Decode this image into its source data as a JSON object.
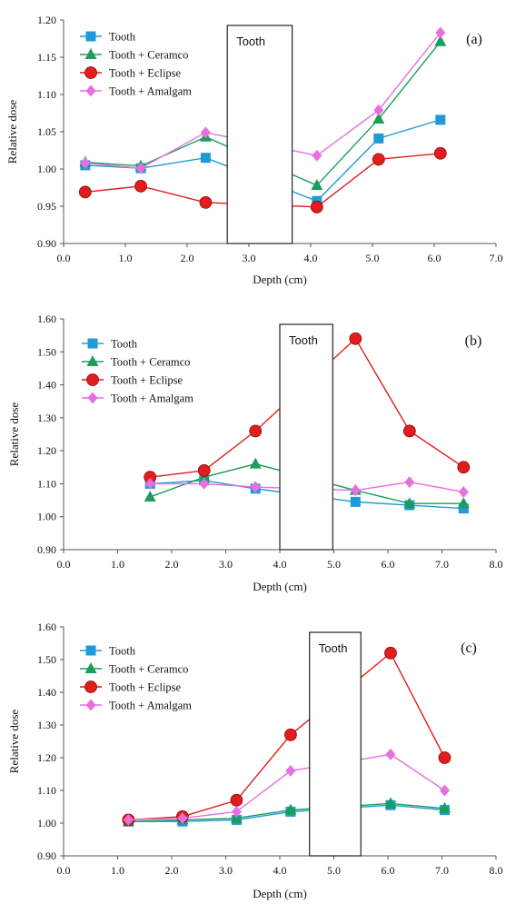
{
  "colors": {
    "Tooth": "#1e9bd7",
    "Tooth + Ceramco": "#1a9e5a",
    "Tooth + Eclipse": "#e11d1d",
    "Tooth + Amalgam": "#e86fe0"
  },
  "markers": {
    "Tooth": "square",
    "Tooth + Ceramco": "triangle",
    "Tooth + Eclipse": "circle",
    "Tooth + Amalgam": "diamond"
  },
  "chart_data": [
    {
      "type": "line",
      "panel_label": "(a)",
      "xlabel": "Depth (cm)",
      "ylabel": "Relative dose",
      "xlim": [
        0,
        7
      ],
      "ylim": [
        0.9,
        1.2
      ],
      "x_ticks": [
        "0.0",
        "1.0",
        "2.0",
        "3.0",
        "4.0",
        "5.0",
        "6.0",
        "7.0"
      ],
      "y_ticks": [
        "0.90",
        "0.95",
        "1.00",
        "1.05",
        "1.10",
        "1.15",
        "1.20"
      ],
      "tooth_box": {
        "label": "Tooth",
        "x_range": [
          2.65,
          3.7
        ]
      },
      "series": [
        {
          "name": "Tooth",
          "x": [
            0.35,
            1.25,
            2.3,
            4.1,
            5.1,
            6.1
          ],
          "y": [
            1.005,
            1.001,
            1.015,
            0.957,
            1.041,
            1.066
          ]
        },
        {
          "name": "Tooth + Ceramco",
          "x": [
            0.35,
            1.25,
            2.3,
            4.1,
            5.1,
            6.1
          ],
          "y": [
            1.009,
            1.004,
            1.043,
            0.978,
            1.067,
            1.171
          ]
        },
        {
          "name": "Tooth + Eclipse",
          "x": [
            0.35,
            1.25,
            2.3,
            4.1,
            5.1,
            6.1
          ],
          "y": [
            0.969,
            0.977,
            0.955,
            0.949,
            1.013,
            1.021
          ]
        },
        {
          "name": "Tooth + Amalgam",
          "x": [
            0.35,
            1.25,
            2.3,
            4.1,
            5.1,
            6.1
          ],
          "y": [
            1.008,
            1.001,
            1.049,
            1.018,
            1.079,
            1.183
          ]
        }
      ]
    },
    {
      "type": "line",
      "panel_label": "(b)",
      "xlabel": "Depth (cm)",
      "ylabel": "Relative dose",
      "xlim": [
        0,
        8
      ],
      "ylim": [
        0.9,
        1.6
      ],
      "x_ticks": [
        "0.0",
        "1.0",
        "2.0",
        "3.0",
        "4.0",
        "5.0",
        "6.0",
        "7.0",
        "8.0"
      ],
      "y_ticks": [
        "0.90",
        "1.00",
        "1.10",
        "1.20",
        "1.30",
        "1.40",
        "1.50",
        "1.60"
      ],
      "tooth_box": {
        "label": "Tooth",
        "x_range": [
          4.0,
          4.98
        ]
      },
      "series": [
        {
          "name": "Tooth",
          "x": [
            1.6,
            2.6,
            3.55,
            5.4,
            6.4,
            7.4
          ],
          "y": [
            1.1,
            1.11,
            1.085,
            1.045,
            1.035,
            1.025
          ]
        },
        {
          "name": "Tooth + Ceramco",
          "x": [
            1.6,
            2.6,
            3.55,
            5.4,
            6.4,
            7.4
          ],
          "y": [
            1.06,
            1.12,
            1.16,
            1.08,
            1.04,
            1.04
          ]
        },
        {
          "name": "Tooth + Eclipse",
          "x": [
            1.6,
            2.6,
            3.55,
            5.4,
            6.4,
            7.4
          ],
          "y": [
            1.12,
            1.14,
            1.26,
            1.54,
            1.26,
            1.15
          ]
        },
        {
          "name": "Tooth + Amalgam",
          "x": [
            1.6,
            2.6,
            3.55,
            5.4,
            6.4,
            7.4
          ],
          "y": [
            1.1,
            1.1,
            1.09,
            1.08,
            1.105,
            1.075
          ]
        }
      ]
    },
    {
      "type": "line",
      "panel_label": "(c)",
      "xlabel": "Depth (cm)",
      "ylabel": "Relative dose",
      "xlim": [
        0,
        8
      ],
      "ylim": [
        0.9,
        1.6
      ],
      "x_ticks": [
        "0.0",
        "1.0",
        "2.0",
        "3.0",
        "4.0",
        "5.0",
        "6.0",
        "7.0",
        "8.0"
      ],
      "y_ticks": [
        "0.90",
        "1.00",
        "1.10",
        "1.20",
        "1.30",
        "1.40",
        "1.50",
        "1.60"
      ],
      "tooth_box": {
        "label": "Tooth",
        "x_range": [
          4.55,
          5.5
        ]
      },
      "series": [
        {
          "name": "Tooth",
          "x": [
            1.2,
            2.2,
            3.2,
            4.2,
            6.05,
            7.05
          ],
          "y": [
            1.005,
            1.005,
            1.01,
            1.035,
            1.055,
            1.04
          ]
        },
        {
          "name": "Tooth + Ceramco",
          "x": [
            1.2,
            2.2,
            3.2,
            4.2,
            6.05,
            7.05
          ],
          "y": [
            1.005,
            1.01,
            1.015,
            1.04,
            1.06,
            1.045
          ]
        },
        {
          "name": "Tooth + Eclipse",
          "x": [
            1.2,
            2.2,
            3.2,
            4.2,
            6.05,
            7.05
          ],
          "y": [
            1.01,
            1.02,
            1.07,
            1.27,
            1.52,
            1.2
          ]
        },
        {
          "name": "Tooth + Amalgam",
          "x": [
            1.2,
            2.2,
            3.2,
            4.2,
            6.05,
            7.05
          ],
          "y": [
            1.01,
            1.015,
            1.035,
            1.16,
            1.21,
            1.1
          ]
        }
      ]
    }
  ]
}
